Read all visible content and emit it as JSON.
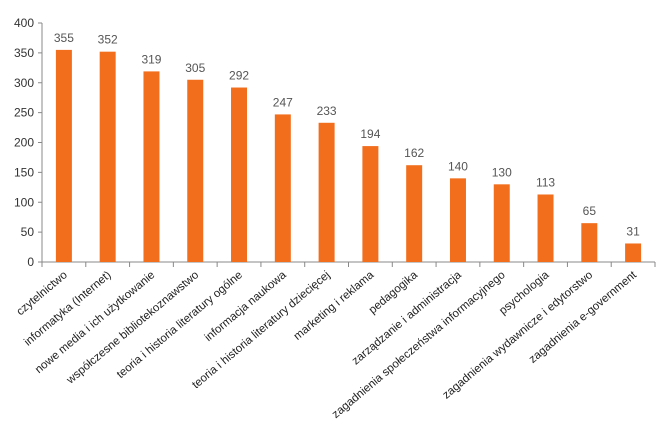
{
  "chart_data": {
    "type": "bar",
    "title": "",
    "xlabel": "",
    "ylabel": "",
    "ylim": [
      0,
      400
    ],
    "yticks": [
      0,
      50,
      100,
      150,
      200,
      250,
      300,
      350,
      400
    ],
    "grid": false,
    "legend": "none",
    "categories": [
      "czytelnictwo",
      "informatyka (Internet)",
      "nowe media i ich użytkowanie",
      "współczesne bibliotekoznawstwo",
      "teoria i historia literatury ogólne",
      "informacja naukowa",
      "teoria i historia literatury dziecięcej",
      "marketing i reklama",
      "pedagogika",
      "zarządzanie i administracja",
      "zagadnienia społeczeństwa informacyjnego",
      "psychologia",
      "zagadnienia wydawnicze i edytorstwo",
      "zagadnienia e-government"
    ],
    "values": [
      355,
      352,
      319,
      305,
      292,
      247,
      233,
      194,
      162,
      140,
      130,
      113,
      65,
      31
    ],
    "colors": {
      "bar": "#F26E1D",
      "axis": "#888888"
    }
  }
}
